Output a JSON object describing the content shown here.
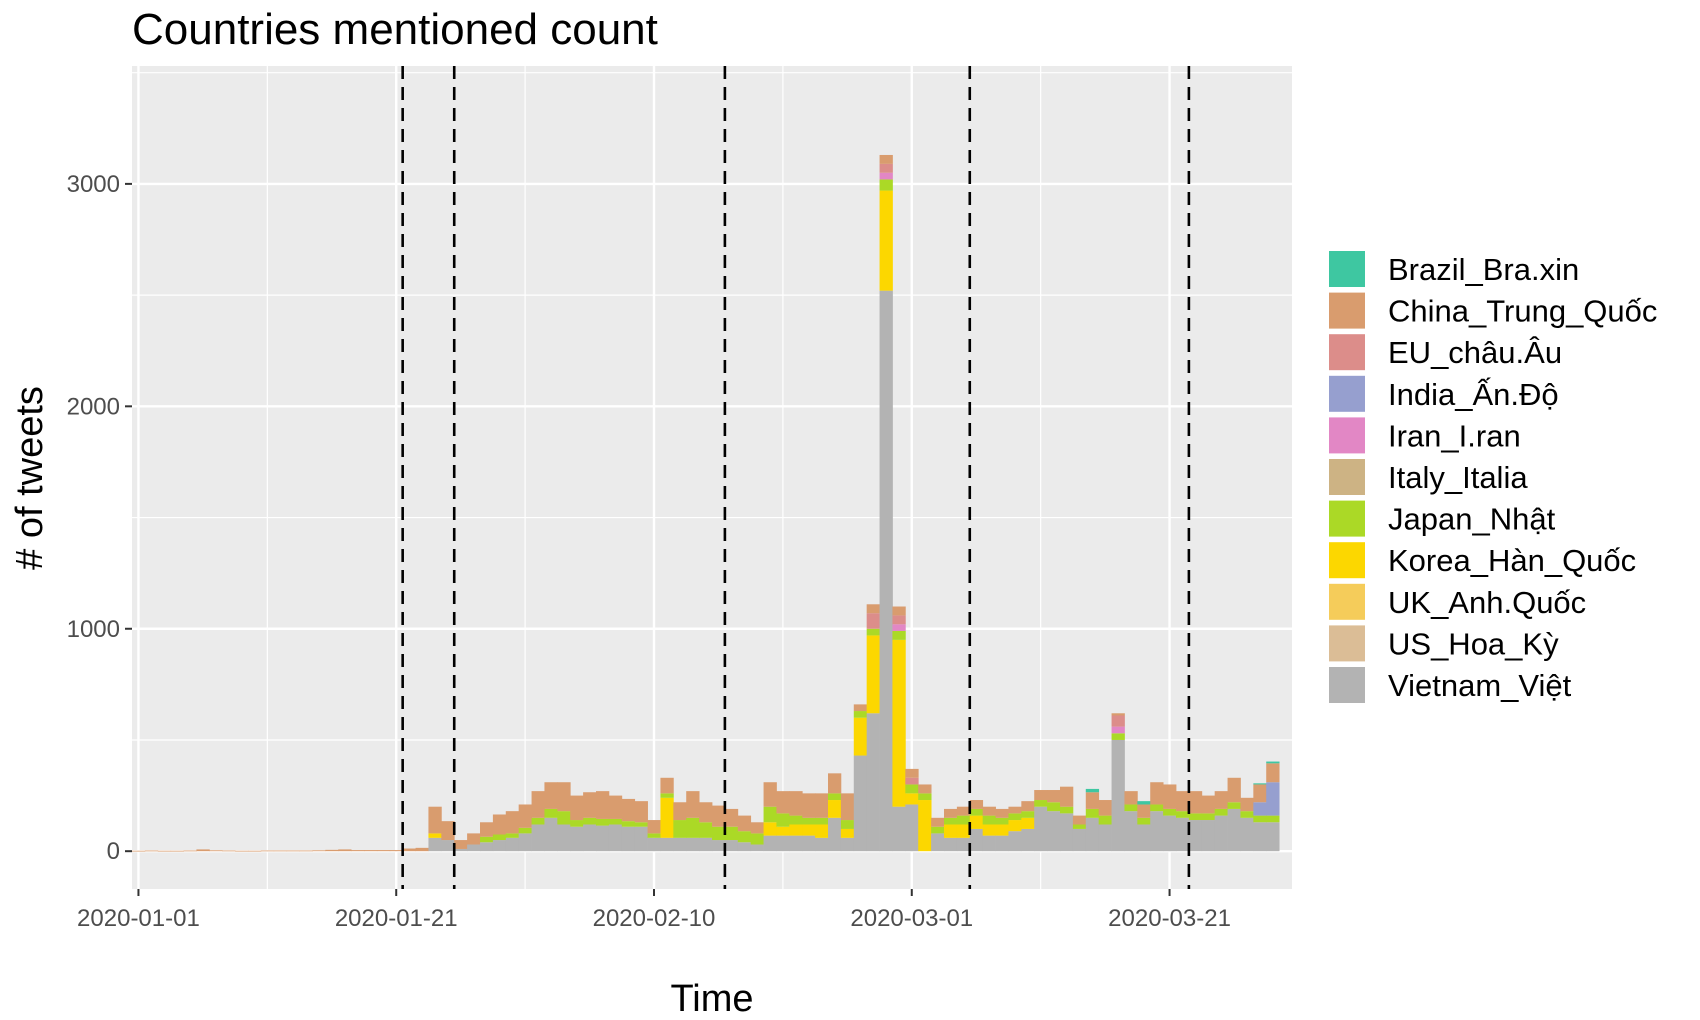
{
  "chart_data": {
    "type": "bar",
    "stacked": true,
    "title": "Countries mentioned count",
    "xlabel": "Time",
    "ylabel": "# of tweets",
    "start_date": "2020-01-01",
    "xlim": [
      "2019-12-31",
      "2020-03-30"
    ],
    "ylim": [
      -170,
      3530
    ],
    "y_ticks": [
      0,
      1000,
      2000,
      3000
    ],
    "x_ticks": [
      "2020-01-01",
      "2020-01-21",
      "2020-02-10",
      "2020-03-01",
      "2020-03-21"
    ],
    "vlines": [
      "2020-01-22",
      "2020-01-26",
      "2020-02-16",
      "2020-03-06",
      "2020-03-23"
    ],
    "grid": true,
    "legend_position": "right",
    "panel_background": "#ebebeb",
    "grid_color": "#ffffff",
    "series": [
      {
        "name": "Brazil_Bra.xin",
        "color": "#3ec7a1",
        "values": [
          0,
          0,
          0,
          0,
          0,
          0,
          0,
          0,
          0,
          0,
          0,
          0,
          0,
          0,
          0,
          0,
          0,
          0,
          0,
          0,
          0,
          0,
          0,
          0,
          0,
          0,
          0,
          0,
          0,
          0,
          0,
          0,
          0,
          0,
          0,
          0,
          0,
          0,
          0,
          0,
          0,
          0,
          0,
          0,
          0,
          0,
          0,
          0,
          0,
          0,
          0,
          0,
          0,
          0,
          0,
          0,
          0,
          0,
          0,
          0,
          0,
          0,
          0,
          0,
          0,
          0,
          0,
          0,
          0,
          0,
          0,
          0,
          0,
          0,
          15,
          0,
          0,
          0,
          15,
          0,
          0,
          0,
          0,
          0,
          0,
          0,
          0,
          5,
          8
        ]
      },
      {
        "name": "China_Trung_Quốc",
        "color": "#d99c6e",
        "values": [
          2,
          3,
          2,
          2,
          3,
          8,
          4,
          3,
          2,
          2,
          3,
          3,
          3,
          3,
          4,
          6,
          8,
          5,
          5,
          5,
          5,
          12,
          15,
          120,
          85,
          40,
          50,
          65,
          90,
          100,
          105,
          120,
          120,
          130,
          110,
          115,
          125,
          105,
          100,
          95,
          60,
          70,
          80,
          120,
          90,
          95,
          80,
          70,
          50,
          110,
          100,
          110,
          110,
          110,
          90,
          120,
          30,
          40,
          40,
          40,
          40,
          40,
          40,
          40,
          40,
          40,
          40,
          40,
          30,
          45,
          45,
          55,
          90,
          40,
          75,
          70,
          10,
          60,
          60,
          100,
          110,
          90,
          100,
          80,
          80,
          110,
          60,
          80,
          85,
          60,
          60,
          70
        ]
      },
      {
        "name": "EU_châu.Âu",
        "color": "#dc8d8a",
        "values": [
          0,
          0,
          0,
          0,
          0,
          0,
          0,
          0,
          0,
          0,
          0,
          0,
          0,
          0,
          0,
          0,
          0,
          0,
          0,
          0,
          0,
          0,
          0,
          0,
          0,
          0,
          0,
          0,
          0,
          0,
          0,
          0,
          0,
          0,
          0,
          0,
          0,
          0,
          0,
          0,
          0,
          0,
          0,
          0,
          0,
          0,
          0,
          0,
          0,
          0,
          0,
          0,
          0,
          0,
          0,
          0,
          0,
          70,
          40,
          40,
          30,
          0,
          0,
          0,
          0,
          0,
          0,
          0,
          0,
          0,
          0,
          0,
          0,
          0,
          0,
          0,
          50,
          0,
          0,
          0,
          0,
          0,
          0,
          0,
          0,
          0,
          0,
          0,
          0,
          0,
          0,
          0
        ]
      },
      {
        "name": "India_Ấn.Độ",
        "color": "#969fcf",
        "values": [
          0,
          0,
          0,
          0,
          0,
          0,
          0,
          0,
          0,
          0,
          0,
          0,
          0,
          0,
          0,
          0,
          0,
          0,
          0,
          0,
          0,
          0,
          0,
          0,
          0,
          0,
          0,
          0,
          0,
          0,
          0,
          0,
          0,
          0,
          0,
          0,
          0,
          0,
          0,
          0,
          0,
          0,
          0,
          0,
          0,
          0,
          0,
          0,
          0,
          0,
          0,
          0,
          0,
          0,
          0,
          0,
          0,
          0,
          0,
          0,
          0,
          0,
          0,
          0,
          0,
          0,
          0,
          0,
          0,
          0,
          0,
          0,
          0,
          0,
          0,
          0,
          0,
          0,
          0,
          0,
          0,
          0,
          0,
          0,
          0,
          0,
          0,
          60,
          150,
          260,
          120
        ]
      },
      {
        "name": "Iran_I.ran",
        "color": "#e287c5",
        "values": [
          0,
          0,
          0,
          0,
          0,
          0,
          0,
          0,
          0,
          0,
          0,
          0,
          0,
          0,
          0,
          0,
          0,
          0,
          0,
          0,
          0,
          0,
          0,
          0,
          0,
          0,
          0,
          0,
          0,
          0,
          0,
          0,
          0,
          0,
          0,
          0,
          0,
          0,
          0,
          0,
          0,
          0,
          0,
          0,
          0,
          0,
          0,
          0,
          0,
          0,
          0,
          0,
          0,
          0,
          0,
          0,
          0,
          0,
          30,
          30,
          0,
          0,
          0,
          0,
          0,
          0,
          0,
          0,
          0,
          0,
          0,
          0,
          0,
          0,
          0,
          0,
          30,
          0,
          0,
          0,
          0,
          0,
          0,
          0,
          0,
          0,
          0,
          0,
          0,
          0,
          0,
          0
        ]
      },
      {
        "name": "Italy_Italia",
        "color": "#cdb384",
        "values": [
          0,
          0,
          0,
          0,
          0,
          0,
          0,
          0,
          0,
          0,
          0,
          0,
          0,
          0,
          0,
          0,
          0,
          0,
          0,
          0,
          0,
          0,
          0,
          0,
          0,
          0,
          0,
          0,
          0,
          0,
          0,
          0,
          0,
          0,
          0,
          0,
          0,
          0,
          0,
          0,
          0,
          0,
          0,
          0,
          0,
          0,
          0,
          0,
          0,
          0,
          0,
          0,
          0,
          0,
          0,
          0,
          0,
          0,
          0,
          0,
          0,
          0,
          0,
          0,
          0,
          0,
          0,
          0,
          0,
          0,
          0,
          0,
          0,
          0,
          0,
          0,
          0,
          0,
          0,
          0,
          0,
          0,
          0,
          0,
          0,
          0,
          0,
          0,
          0,
          0,
          0,
          0
        ]
      },
      {
        "name": "Japan_Nhật",
        "color": "#abd926",
        "values": [
          0,
          0,
          0,
          0,
          0,
          0,
          0,
          0,
          0,
          0,
          0,
          0,
          0,
          0,
          0,
          0,
          0,
          0,
          0,
          0,
          0,
          0,
          0,
          0,
          0,
          0,
          0,
          25,
          25,
          20,
          25,
          30,
          40,
          60,
          30,
          30,
          30,
          25,
          25,
          20,
          20,
          20,
          80,
          90,
          70,
          60,
          60,
          50,
          50,
          70,
          60,
          40,
          30,
          30,
          30,
          40,
          30,
          30,
          50,
          40,
          40,
          30,
          30,
          30,
          40,
          30,
          40,
          30,
          30,
          30,
          30,
          40,
          30,
          20,
          40,
          40,
          30,
          30,
          30,
          30,
          30,
          30,
          30,
          30,
          30,
          30,
          30,
          30,
          30,
          40,
          40,
          40
        ]
      },
      {
        "name": "Korea_Hàn_Quốc",
        "color": "#fcd700",
        "values": [
          0,
          0,
          0,
          0,
          0,
          0,
          0,
          0,
          0,
          0,
          0,
          0,
          0,
          0,
          0,
          0,
          0,
          0,
          0,
          0,
          0,
          0,
          0,
          20,
          0,
          0,
          0,
          0,
          0,
          0,
          0,
          0,
          0,
          0,
          0,
          0,
          0,
          0,
          0,
          0,
          0,
          180,
          0,
          0,
          0,
          0,
          0,
          0,
          0,
          60,
          40,
          50,
          50,
          60,
          80,
          40,
          170,
          350,
          450,
          750,
          50,
          230,
          0,
          60,
          60,
          60,
          50,
          50,
          50,
          50,
          0,
          0,
          0,
          0,
          0,
          0,
          0,
          0,
          0,
          0,
          0,
          0,
          0,
          0,
          0,
          0,
          0,
          0,
          0,
          0,
          0,
          0
        ]
      },
      {
        "name": "UK_Anh.Quốc",
        "color": "#f5cc5a",
        "values": [
          0,
          0,
          0,
          0,
          0,
          0,
          0,
          0,
          0,
          0,
          0,
          0,
          0,
          0,
          0,
          0,
          0,
          0,
          0,
          0,
          0,
          0,
          0,
          0,
          0,
          0,
          0,
          0,
          0,
          0,
          0,
          0,
          0,
          0,
          0,
          0,
          0,
          0,
          0,
          0,
          0,
          0,
          0,
          0,
          0,
          0,
          0,
          0,
          0,
          0,
          0,
          0,
          0,
          0,
          0,
          0,
          0,
          0,
          0,
          0,
          0,
          0,
          0,
          0,
          0,
          0,
          0,
          0,
          0,
          0,
          0,
          0,
          0,
          0,
          0,
          0,
          0,
          0,
          0,
          0,
          0,
          0,
          0,
          0,
          0,
          0,
          0,
          0,
          0,
          0,
          0,
          0
        ]
      },
      {
        "name": "US_Hoa_Kỳ",
        "color": "#dbbd96",
        "values": [
          0,
          0,
          0,
          0,
          0,
          0,
          0,
          0,
          0,
          0,
          0,
          0,
          0,
          0,
          0,
          0,
          0,
          0,
          0,
          0,
          0,
          0,
          0,
          0,
          0,
          0,
          0,
          0,
          0,
          0,
          0,
          0,
          0,
          0,
          0,
          0,
          0,
          0,
          0,
          0,
          0,
          0,
          0,
          0,
          0,
          0,
          0,
          0,
          0,
          0,
          0,
          0,
          0,
          0,
          0,
          0,
          0,
          0,
          0,
          0,
          0,
          0,
          0,
          0,
          0,
          0,
          0,
          0,
          0,
          0,
          0,
          0,
          0,
          0,
          0,
          0,
          0,
          0,
          0,
          0,
          0,
          0,
          0,
          0,
          0,
          0,
          0,
          0,
          0,
          0,
          0,
          0
        ]
      },
      {
        "name": "Vietnam_Việt",
        "color": "#b3b3b3",
        "values": [
          0,
          0,
          0,
          0,
          0,
          0,
          0,
          0,
          0,
          0,
          0,
          0,
          0,
          0,
          0,
          0,
          0,
          0,
          0,
          0,
          0,
          0,
          0,
          60,
          50,
          10,
          30,
          40,
          50,
          60,
          80,
          120,
          150,
          120,
          110,
          120,
          115,
          120,
          110,
          110,
          60,
          60,
          60,
          60,
          60,
          50,
          50,
          40,
          30,
          70,
          70,
          70,
          70,
          60,
          150,
          60,
          430,
          620,
          2520,
          200,
          210,
          0,
          80,
          60,
          60,
          100,
          70,
          70,
          90,
          100,
          200,
          180,
          170,
          100,
          150,
          120,
          500,
          180,
          120,
          180,
          160,
          150,
          140,
          140,
          160,
          190,
          150,
          130,
          130,
          120,
          110,
          120
        ]
      }
    ]
  }
}
